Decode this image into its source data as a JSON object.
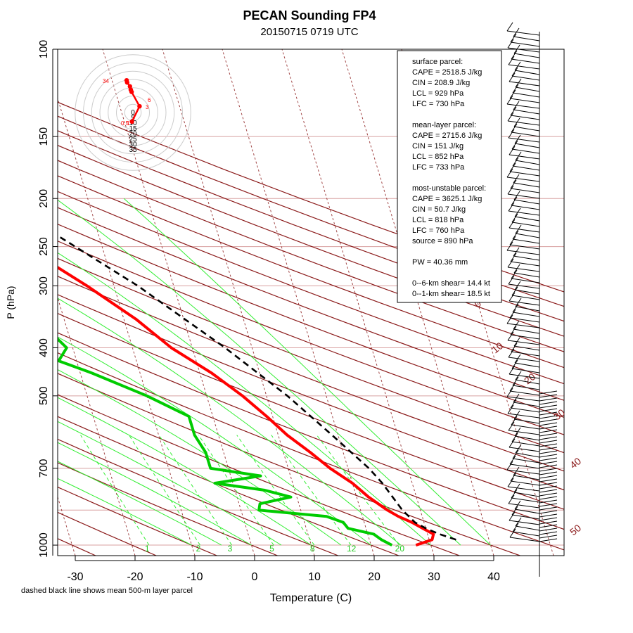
{
  "chart_data": {
    "type": "skew-t",
    "title": "PECAN Sounding FP4",
    "subtitle": "20150715 0719 UTC",
    "xlabel": "Temperature (C)",
    "ylabel": "P (hPa)",
    "footnote": "dashed black line shows mean 500-m layer parcel",
    "xlim": [
      -33,
      47
    ],
    "ylim_hpa": [
      1050,
      100
    ],
    "x_ticks": [
      -30,
      -20,
      -10,
      0,
      10,
      20,
      30,
      40
    ],
    "x_tick_labels": [
      "-30",
      "-20",
      "-10",
      "0",
      "10",
      "20",
      "30",
      "40"
    ],
    "isobars": [
      100,
      150,
      200,
      250,
      300,
      400,
      500,
      700,
      850,
      1000
    ],
    "p_tick_labels": [
      "100",
      "150",
      "200",
      "250",
      "300",
      "400",
      "500",
      "700",
      "1000"
    ],
    "mixing_ratio_labels": [
      "1",
      "2",
      "3",
      "5",
      "8",
      "12",
      "20"
    ],
    "dry_adiabat_labels": [
      "0",
      "10",
      "20",
      "30",
      "40",
      "50"
    ],
    "temperature": [
      [
        1000,
        27.5
      ],
      [
        975,
        30.5
      ],
      [
        950,
        31
      ],
      [
        925,
        29.5
      ],
      [
        900,
        28
      ],
      [
        875,
        26
      ],
      [
        850,
        24.5
      ],
      [
        800,
        22
      ],
      [
        750,
        20
      ],
      [
        700,
        17
      ],
      [
        650,
        14.5
      ],
      [
        600,
        11.5
      ],
      [
        550,
        9
      ],
      [
        500,
        6
      ],
      [
        450,
        2
      ],
      [
        400,
        -3.5
      ],
      [
        350,
        -8
      ],
      [
        300,
        -14.5
      ],
      [
        250,
        -23
      ],
      [
        200,
        -33
      ],
      [
        175,
        -38
      ],
      [
        150,
        -44
      ],
      [
        140,
        -46
      ],
      [
        125,
        -49
      ],
      [
        115,
        -51
      ],
      [
        100,
        -54
      ]
    ],
    "dewpoint": [
      [
        1000,
        23.5
      ],
      [
        975,
        22
      ],
      [
        950,
        21
      ],
      [
        925,
        17
      ],
      [
        900,
        16.5
      ],
      [
        875,
        14
      ],
      [
        850,
        3
      ],
      [
        825,
        3.5
      ],
      [
        800,
        9
      ],
      [
        775,
        5
      ],
      [
        750,
        -3
      ],
      [
        725,
        5
      ],
      [
        700,
        -3
      ],
      [
        650,
        -3
      ],
      [
        600,
        -4
      ],
      [
        550,
        -4
      ],
      [
        500,
        -10
      ],
      [
        450,
        -18
      ],
      [
        425,
        -23
      ],
      [
        400,
        -21
      ],
      [
        350,
        -24.5
      ],
      [
        300,
        -30.5
      ],
      [
        250,
        -38
      ],
      [
        200,
        -46
      ],
      [
        175,
        -51
      ],
      [
        150,
        -55
      ],
      [
        140,
        -55
      ],
      [
        125,
        -59
      ],
      [
        115,
        -61
      ],
      [
        100,
        -66
      ]
    ],
    "parcel": [
      [
        975,
        34.5
      ],
      [
        950,
        32
      ],
      [
        925,
        30
      ],
      [
        900,
        28.5
      ],
      [
        850,
        27
      ],
      [
        750,
        25
      ],
      [
        700,
        23.5
      ],
      [
        600,
        19
      ],
      [
        500,
        13.5
      ],
      [
        400,
        5.5
      ],
      [
        300,
        -6
      ],
      [
        250,
        -14.5
      ],
      [
        200,
        -25
      ],
      [
        150,
        -38.5
      ],
      [
        100,
        -58
      ]
    ],
    "hodograph": {
      "rings_kt": [
        0,
        5,
        10,
        15,
        20,
        25,
        30,
        35
      ],
      "height_labels": [
        "0.5",
        "1",
        "3",
        "6",
        "34"
      ],
      "points": [
        [
          -0.6,
          -5.5
        ],
        [
          4,
          3.8
        ],
        [
          -0.8,
          12.5
        ],
        [
          -1.3,
          13.8
        ],
        [
          -1.8,
          15.8
        ],
        [
          -3.5,
          18.2
        ],
        [
          -3.8,
          19.5
        ]
      ]
    },
    "stats": [
      "surface parcel:",
      "CAPE = 2518.5 J/kg",
      "CIN = 208.9 J/kg",
      "LCL = 929 hPa",
      "LFC = 730 hPa",
      "",
      "mean-layer parcel:",
      "CAPE = 2715.6 J/kg",
      "CIN = 151 J/kg",
      "LCL = 852 hPa",
      "LFC = 733 hPa",
      "",
      "most-unstable parcel:",
      "CAPE = 3625.1 J/kg",
      "CIN = 50.7 J/kg",
      "LCL = 818 hPa",
      "LFC = 760 hPa",
      "source = 890 hPa",
      "",
      "PW =  40.36 mm",
      "",
      "0--6-km shear= 14.4 kt",
      "0--1-km shear= 18.5 kt"
    ],
    "colors": {
      "temperature": "#ff0000",
      "dewpoint": "#00cc00",
      "parcel": "#000000",
      "isotherm": "#8b1a1a",
      "isobar": "#d8a0a0",
      "mixing_ratio": "#33ee33",
      "hodograph": "#ff0000"
    }
  }
}
